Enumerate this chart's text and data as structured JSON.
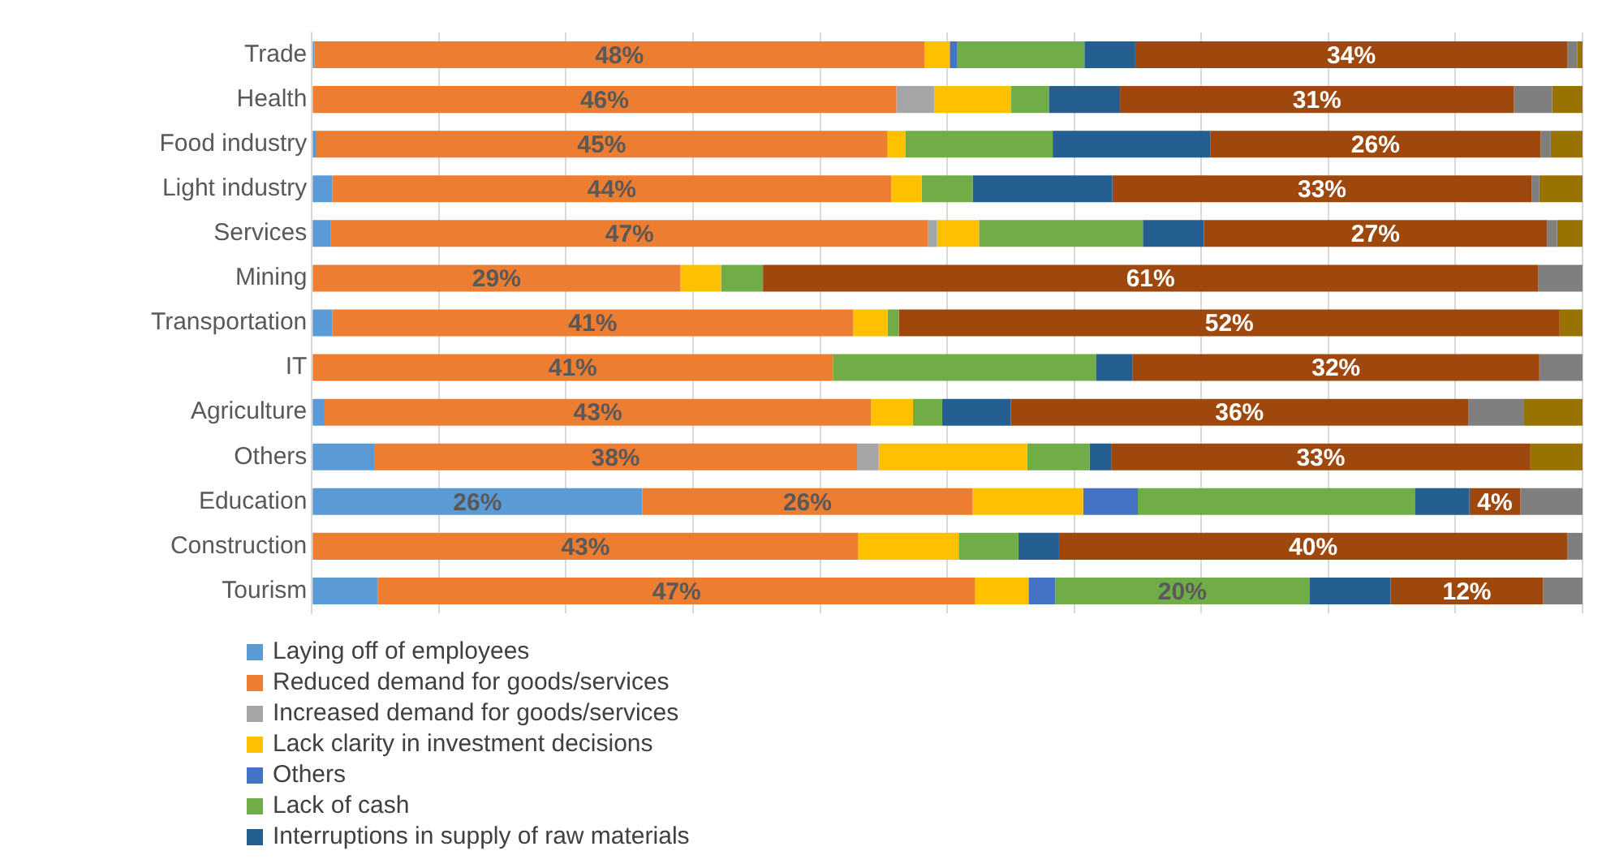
{
  "chart_data": {
    "type": "bar",
    "orientation": "horizontal",
    "stacked": true,
    "categories": [
      "Trade",
      "Health",
      "Food industry",
      "Light industry",
      "Services",
      "Mining",
      "Transportation",
      "IT",
      "Agriculture",
      "Others",
      "Education",
      "Construction",
      "Tourism"
    ],
    "xlim": [
      0,
      100
    ],
    "xticks": [
      {
        "value": 0,
        "label": null
      },
      {
        "value": 10,
        "label": null
      },
      {
        "value": 20,
        "label": null
      },
      {
        "value": 30,
        "label": null
      },
      {
        "value": 40,
        "label": null
      },
      {
        "value": 50,
        "label": null
      },
      {
        "value": 60,
        "label": null
      },
      {
        "value": 70,
        "label": null
      },
      {
        "value": 80,
        "label": null
      },
      {
        "value": 90,
        "label": null
      },
      {
        "value": 100,
        "label": null
      }
    ],
    "tick_labels": "y",
    "grid": "x",
    "legend": "bottom",
    "series": [
      {
        "name": "Laying off of employees",
        "color": "#5b9bd5",
        "values": [
          0.2,
          0,
          0.3,
          1.6,
          1.5,
          0,
          1.6,
          0,
          1,
          4.9,
          26,
          0,
          5.2
        ],
        "value_labels": [
          null,
          null,
          null,
          null,
          null,
          null,
          null,
          null,
          null,
          null,
          "26%",
          null,
          null
        ]
      },
      {
        "name": "Reduced demand for goods/services",
        "color": "#ed7d31",
        "values": [
          48,
          46,
          45,
          44,
          47,
          29,
          41,
          41,
          43,
          38,
          26,
          43,
          47
        ],
        "value_labels": [
          "48%",
          "46%",
          "45%",
          "44%",
          "47%",
          "29%",
          "41%",
          "41%",
          "43%",
          "38%",
          "26%",
          "43%",
          "47%"
        ]
      },
      {
        "name": "Increased demand for goods/services",
        "color": "#a5a5a5",
        "values": [
          0,
          3,
          0,
          0,
          0.7,
          0,
          0,
          0,
          0,
          1.7,
          0,
          0,
          0
        ]
      },
      {
        "name": "Lack clarity in investment decisions",
        "color": "#ffc000",
        "values": [
          2,
          6,
          1.4,
          2.4,
          3.3,
          3.2,
          2.7,
          0,
          3.3,
          11.7,
          8.7,
          7.9,
          4.2
        ]
      },
      {
        "name": "Others",
        "color": "#4472c4",
        "values": [
          0.6,
          0,
          0,
          0,
          0,
          0,
          0,
          0,
          0,
          0,
          4.3,
          0,
          2.1
        ]
      },
      {
        "name": "Lack of cash",
        "color": "#70ad47",
        "values": [
          10,
          3,
          11.6,
          4,
          12.9,
          3.3,
          0.9,
          20.7,
          2.3,
          4.9,
          21.8,
          4.7,
          20
        ],
        "value_labels": [
          null,
          null,
          null,
          null,
          null,
          null,
          null,
          null,
          null,
          null,
          null,
          null,
          "20%"
        ]
      },
      {
        "name": "Interruptions in supply of raw materials",
        "color": "#255e91",
        "values": [
          4,
          5.6,
          12.4,
          11,
          4.8,
          0,
          0,
          2.9,
          5.4,
          1.7,
          4.3,
          3.2,
          6.4
        ]
      },
      {
        "color": "#9e480e",
        "values": [
          34,
          31,
          26,
          33,
          27,
          61,
          52,
          32,
          36,
          33,
          4,
          40,
          12
        ],
        "value_labels": [
          "34%",
          "31%",
          "26%",
          "33%",
          "27%",
          "61%",
          "52%",
          "32%",
          "36%",
          "33%",
          "4%",
          "40%",
          "12%"
        ]
      },
      {
        "color": "#7f7f7f",
        "values": [
          0.8,
          3,
          0.8,
          0.6,
          0.8,
          3.5,
          0,
          3.4,
          4.4,
          0,
          4.9,
          1.2,
          3.1
        ]
      },
      {
        "color": "#997300",
        "values": [
          0.4,
          2.4,
          2.5,
          3.4,
          2,
          0,
          1.8,
          0,
          4.6,
          4.1,
          0,
          0,
          0
        ]
      }
    ]
  }
}
